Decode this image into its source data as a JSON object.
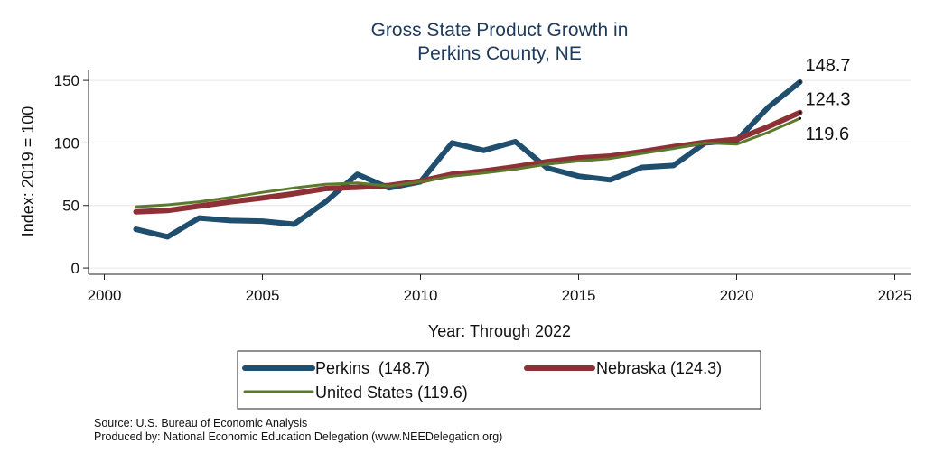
{
  "chart_data": {
    "type": "line",
    "title_lines": [
      "Gross State Product Growth in",
      "Perkins County, NE"
    ],
    "xlabel": "Year: Through 2022",
    "ylabel": "Index: 2019 = 100",
    "xlim": [
      1999.5,
      2025.5
    ],
    "ylim": [
      -5,
      158
    ],
    "x_ticks": [
      2000,
      2005,
      2010,
      2015,
      2020,
      2025
    ],
    "y_ticks": [
      0,
      50,
      100,
      150
    ],
    "grid": true,
    "x": [
      2001,
      2002,
      2003,
      2004,
      2005,
      2006,
      2007,
      2008,
      2009,
      2010,
      2011,
      2012,
      2013,
      2014,
      2015,
      2016,
      2017,
      2018,
      2019,
      2020,
      2021,
      2022
    ],
    "series": [
      {
        "name": "Perkins",
        "legend_label": "Perkins  (148.7)",
        "end_label": "148.7",
        "color": "#1f4e6e",
        "width": 6,
        "values": [
          31,
          25,
          40,
          38,
          37.5,
          35,
          53,
          75,
          64,
          69,
          100,
          94,
          101,
          80,
          73.5,
          70.5,
          80.5,
          82,
          100,
          102,
          128.5,
          148.7
        ]
      },
      {
        "name": "Nebraska",
        "legend_label": "Nebraska (124.3)",
        "end_label": "124.3",
        "color": "#8e3137",
        "width": 6,
        "values": [
          45,
          46,
          49.5,
          53,
          56,
          59.5,
          63.5,
          64.5,
          66,
          69.5,
          75,
          77.5,
          81,
          85,
          88,
          89.5,
          93,
          97,
          100.5,
          103,
          113,
          124.3
        ]
      },
      {
        "name": "United States",
        "legend_label": "United States (119.6)",
        "end_label": "119.6",
        "color": "#5b7a2e",
        "width": 3,
        "values": [
          49,
          50.5,
          53,
          56.5,
          60.5,
          64,
          67,
          68,
          65.5,
          69,
          73.5,
          76,
          79,
          83,
          85.5,
          87.5,
          91.5,
          95.5,
          100,
          99,
          108.5,
          119.6
        ]
      }
    ]
  },
  "footer": {
    "source": "Source: U.S. Bureau of Economic Analysis",
    "produced_by": "Produced by: National Economic Education Delegation (www.NEEDelegation.org)"
  }
}
